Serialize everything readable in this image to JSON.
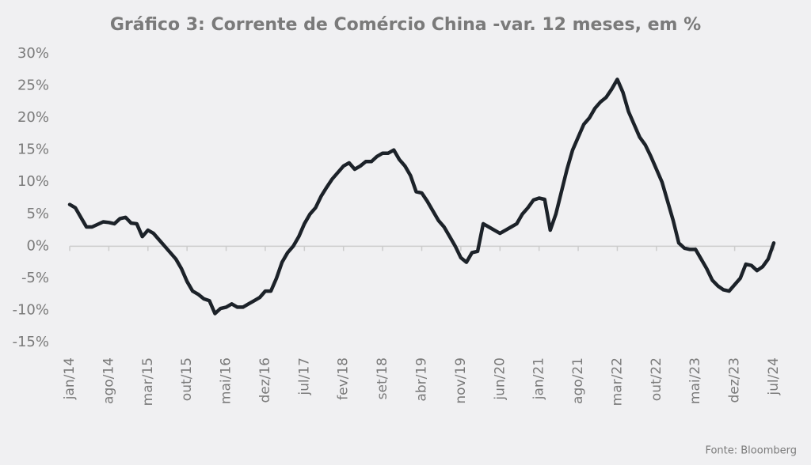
{
  "chart_data": {
    "type": "line",
    "title": "Gráfico 3: Corrente de Comércio China -var. 12 meses, em %",
    "source": "Fonte: Bloomberg",
    "categories": [
      "jan/14",
      null,
      null,
      null,
      null,
      null,
      null,
      "ago/14",
      null,
      null,
      null,
      null,
      null,
      null,
      "mar/15",
      null,
      null,
      null,
      null,
      null,
      null,
      "out/15",
      null,
      null,
      null,
      null,
      null,
      null,
      "mai/16",
      null,
      null,
      null,
      null,
      null,
      null,
      "dez/16",
      null,
      null,
      null,
      null,
      null,
      null,
      "jul/17",
      null,
      null,
      null,
      null,
      null,
      null,
      "fev/18",
      null,
      null,
      null,
      null,
      null,
      null,
      "set/18",
      null,
      null,
      null,
      null,
      null,
      null,
      "abr/19",
      null,
      null,
      null,
      null,
      null,
      null,
      "nov/19",
      null,
      null,
      null,
      null,
      null,
      null,
      "jun/20",
      null,
      null,
      null,
      null,
      null,
      null,
      "jan/21",
      null,
      null,
      null,
      null,
      null,
      null,
      "ago/21",
      null,
      null,
      null,
      null,
      null,
      null,
      "mar/22",
      null,
      null,
      null,
      null,
      null,
      null,
      "out/22",
      null,
      null,
      null,
      null,
      null,
      null,
      "mai/23",
      null,
      null,
      null,
      null,
      null,
      null,
      "dez/23",
      null,
      null,
      null,
      null,
      null,
      null,
      "jul/24"
    ],
    "values": [
      6.5,
      6,
      4.5,
      3,
      3,
      3.4,
      3.8,
      3.7,
      3.5,
      4.3,
      4.5,
      3.6,
      3.5,
      1.5,
      2.5,
      2,
      1,
      0,
      -1,
      -2,
      -3.5,
      -5.5,
      -7,
      -7.5,
      -8.2,
      -8.5,
      -10.5,
      -9.7,
      -9.5,
      -9,
      -9.5,
      -9.5,
      -9,
      -8.5,
      -8,
      -7,
      -7,
      -5,
      -2.5,
      -1,
      0,
      1.5,
      3.5,
      5,
      6,
      7.8,
      9.2,
      10.5,
      11.5,
      12.5,
      13,
      12,
      12.5,
      13.2,
      13.2,
      14,
      14.5,
      14.5,
      15,
      13.5,
      12.5,
      11,
      8.5,
      8.3,
      7,
      5.5,
      4,
      3,
      1.5,
      0,
      -1.8,
      -2.5,
      -1,
      -0.8,
      3.5,
      3,
      2.5,
      2,
      2.5,
      3,
      3.5,
      5,
      6,
      7.2,
      7.5,
      7.3,
      2.5,
      5,
      8.5,
      12,
      15,
      17,
      19,
      20,
      21.5,
      22.5,
      23.2,
      24.5,
      26,
      24,
      21,
      19,
      17,
      15.8,
      14,
      12,
      10,
      7,
      4,
      0.5,
      -0.3,
      -0.5,
      -0.5,
      -2,
      -3.5,
      -5.3,
      -6.2,
      -6.8,
      -7,
      -6,
      -5,
      -2.8,
      -3,
      -3.8,
      -3.2,
      -2,
      0.5
    ],
    "color": "#1c2229",
    "ylim": [
      -15,
      30
    ],
    "yticks": [
      {
        "value": -15,
        "label": "-15%"
      },
      {
        "value": -10,
        "label": "-10%"
      },
      {
        "value": -5,
        "label": "-5%"
      },
      {
        "value": 0,
        "label": "0%"
      },
      {
        "value": 5,
        "label": "5%"
      },
      {
        "value": 10,
        "label": "10%"
      },
      {
        "value": 15,
        "label": "15%"
      },
      {
        "value": 20,
        "label": "20%"
      },
      {
        "value": 25,
        "label": "25%"
      },
      {
        "value": 30,
        "label": "30%"
      }
    ]
  }
}
